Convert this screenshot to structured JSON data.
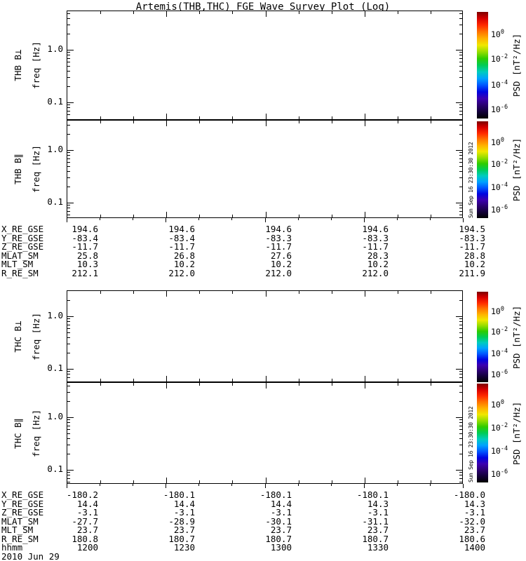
{
  "title": "Artemis(THB,THC) FGE Wave Survey Plot (Log)",
  "colors": {
    "background": "#ffffff",
    "foreground": "#000000"
  },
  "colorbar": {
    "title": "PSD [nT²/Hz]",
    "tick_base": "10",
    "tick_exponents": [
      "0",
      "-2",
      "-4",
      "-6"
    ],
    "timestamp": "Sun Sep 16 23:30:30 2012",
    "gradient": [
      "#7d0000",
      "#d80000",
      "#ff2a00",
      "#ff7400",
      "#ffb200",
      "#f0e800",
      "#96dd00",
      "#2ecc00",
      "#00cc55",
      "#00ccbe",
      "#00a2ff",
      "#0055ff",
      "#0004e0",
      "#3c00b0",
      "#2a0070",
      "#120038",
      "#000000"
    ]
  },
  "panels": [
    {
      "id": "thb-bperp",
      "instrument": "THB B⊥",
      "axis_label": "freq [Hz]",
      "ytick_labels": [
        "1.0",
        "0.1"
      ]
    },
    {
      "id": "thb-bpar",
      "instrument": "THB B∥",
      "axis_label": "freq [Hz]",
      "ytick_labels": [
        "1.0",
        "0.1"
      ]
    },
    {
      "id": "thc-bperp",
      "instrument": "THC B⊥",
      "axis_label": "freq [Hz]",
      "ytick_labels": [
        "1.0",
        "0.1"
      ]
    },
    {
      "id": "thc-bpar",
      "instrument": "THC B∥",
      "axis_label": "freq [Hz]",
      "ytick_labels": [
        "1.0",
        "0.1"
      ]
    }
  ],
  "tables": [
    {
      "rows": [
        {
          "label": "X_RE_GSE",
          "values": [
            "194.6",
            "194.6",
            "194.6",
            "194.6",
            "194.5"
          ]
        },
        {
          "label": "Y_RE_GSE",
          "values": [
            "-83.4",
            "-83.4",
            "-83.3",
            "-83.3",
            "-83.3"
          ]
        },
        {
          "label": "Z_RE_GSE",
          "values": [
            "-11.7",
            "-11.7",
            "-11.7",
            "-11.7",
            "-11.7"
          ]
        },
        {
          "label": "MLAT_SM",
          "values": [
            "25.8",
            "26.8",
            "27.6",
            "28.3",
            "28.8"
          ]
        },
        {
          "label": "MLT_SM",
          "values": [
            "10.3",
            "10.2",
            "10.2",
            "10.2",
            "10.2"
          ]
        },
        {
          "label": "R_RE_SM",
          "values": [
            "212.1",
            "212.0",
            "212.0",
            "212.0",
            "211.9"
          ]
        }
      ]
    },
    {
      "rows": [
        {
          "label": "X_RE_GSE",
          "values": [
            "-180.2",
            "-180.1",
            "-180.1",
            "-180.1",
            "-180.0"
          ]
        },
        {
          "label": "Y_RE_GSE",
          "values": [
            "14.4",
            "14.4",
            "14.4",
            "14.3",
            "14.3"
          ]
        },
        {
          "label": "Z_RE_GSE",
          "values": [
            "-3.1",
            "-3.1",
            "-3.1",
            "-3.1",
            "-3.1"
          ]
        },
        {
          "label": "MLAT_SM",
          "values": [
            "-27.7",
            "-28.9",
            "-30.1",
            "-31.1",
            "-32.0"
          ]
        },
        {
          "label": "MLT_SM",
          "values": [
            "23.7",
            "23.7",
            "23.7",
            "23.7",
            "23.7"
          ]
        },
        {
          "label": "R_RE_SM",
          "values": [
            "180.8",
            "180.7",
            "180.7",
            "180.7",
            "180.6"
          ]
        },
        {
          "label": "hhmm",
          "values": [
            "1200",
            "1230",
            "1300",
            "1330",
            "1400"
          ]
        }
      ],
      "footer": "2010 Jun 29"
    }
  ],
  "chart_data": [
    {
      "type": "heatmap",
      "title": "THB B⊥",
      "ylabel": "freq [Hz]",
      "yscale": "log",
      "ytick_labels": [
        "1.0",
        "0.1"
      ],
      "x_hhmm": [
        1200,
        1230,
        1300,
        1330,
        1400
      ],
      "colorbar_label": "PSD [nT²/Hz]",
      "colorbar_ticks": [
        "10^0",
        "10^-2",
        "10^-4",
        "10^-6"
      ],
      "values": [],
      "note": "panel blank - no spectral data rendered"
    },
    {
      "type": "heatmap",
      "title": "THB B∥",
      "ylabel": "freq [Hz]",
      "yscale": "log",
      "ytick_labels": [
        "1.0",
        "0.1"
      ],
      "x_hhmm": [
        1200,
        1230,
        1300,
        1330,
        1400
      ],
      "colorbar_label": "PSD [nT²/Hz]",
      "colorbar_ticks": [
        "10^0",
        "10^-2",
        "10^-4",
        "10^-6"
      ],
      "values": [],
      "note": "panel blank - no spectral data rendered"
    },
    {
      "type": "heatmap",
      "title": "THC B⊥",
      "ylabel": "freq [Hz]",
      "yscale": "log",
      "ytick_labels": [
        "1.0",
        "0.1"
      ],
      "x_hhmm": [
        1200,
        1230,
        1300,
        1330,
        1400
      ],
      "colorbar_label": "PSD [nT²/Hz]",
      "colorbar_ticks": [
        "10^0",
        "10^-2",
        "10^-4",
        "10^-6"
      ],
      "values": [],
      "note": "panel blank - no spectral data rendered"
    },
    {
      "type": "heatmap",
      "title": "THC B∥",
      "ylabel": "freq [Hz]",
      "yscale": "log",
      "ytick_labels": [
        "1.0",
        "0.1"
      ],
      "x_hhmm": [
        1200,
        1230,
        1300,
        1330,
        1400
      ],
      "colorbar_label": "PSD [nT²/Hz]",
      "colorbar_ticks": [
        "10^0",
        "10^-2",
        "10^-4",
        "10^-6"
      ],
      "values": [],
      "note": "panel blank - no spectral data rendered"
    },
    {
      "type": "table",
      "title": "THB ephemeris",
      "row_labels": [
        "X_RE_GSE",
        "Y_RE_GSE",
        "Z_RE_GSE",
        "MLAT_SM",
        "MLT_SM",
        "R_RE_SM"
      ],
      "rows": [
        [
          194.6,
          194.6,
          194.6,
          194.6,
          194.5
        ],
        [
          -83.4,
          -83.4,
          -83.3,
          -83.3,
          -83.3
        ],
        [
          -11.7,
          -11.7,
          -11.7,
          -11.7,
          -11.7
        ],
        [
          25.8,
          26.8,
          27.6,
          28.3,
          28.8
        ],
        [
          10.3,
          10.2,
          10.2,
          10.2,
          10.2
        ],
        [
          212.1,
          212.0,
          212.0,
          212.0,
          211.9
        ]
      ]
    },
    {
      "type": "table",
      "title": "THC ephemeris",
      "row_labels": [
        "X_RE_GSE",
        "Y_RE_GSE",
        "Z_RE_GSE",
        "MLAT_SM",
        "MLT_SM",
        "R_RE_SM",
        "hhmm"
      ],
      "rows": [
        [
          -180.2,
          -180.1,
          -180.1,
          -180.1,
          -180.0
        ],
        [
          14.4,
          14.4,
          14.4,
          14.3,
          14.3
        ],
        [
          -3.1,
          -3.1,
          -3.1,
          -3.1,
          -3.1
        ],
        [
          -27.7,
          -28.9,
          -30.1,
          -31.1,
          -32.0
        ],
        [
          23.7,
          23.7,
          23.7,
          23.7,
          23.7
        ],
        [
          180.8,
          180.7,
          180.7,
          180.7,
          180.6
        ],
        [
          1200,
          1230,
          1300,
          1330,
          1400
        ]
      ],
      "date": "2010 Jun 29"
    }
  ]
}
